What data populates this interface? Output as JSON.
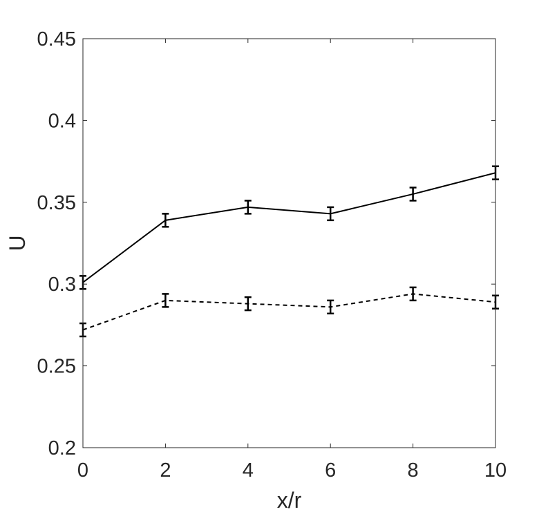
{
  "chart_data": {
    "type": "line",
    "xlabel": "x/r",
    "ylabel": "U",
    "xlim": [
      0,
      10
    ],
    "ylim": [
      0.2,
      0.45
    ],
    "xticks": [
      0,
      2,
      4,
      6,
      8,
      10
    ],
    "xtick_labels": [
      "0",
      "2",
      "4",
      "6",
      "8",
      "10"
    ],
    "yticks": [
      0.2,
      0.25,
      0.3,
      0.35,
      0.4,
      0.45
    ],
    "ytick_labels": [
      "0.2",
      "0.25",
      "0.3",
      "0.35",
      "0.4",
      "0.45"
    ],
    "grid": false,
    "box": true,
    "x": [
      0,
      2,
      4,
      6,
      8,
      10
    ],
    "series": [
      {
        "style": "solid",
        "color": "#000000",
        "values": [
          0.301,
          0.339,
          0.347,
          0.343,
          0.355,
          0.368
        ],
        "errors": [
          0.004,
          0.004,
          0.004,
          0.004,
          0.004,
          0.004
        ]
      },
      {
        "style": "dashed",
        "color": "#000000",
        "values": [
          0.272,
          0.29,
          0.288,
          0.286,
          0.294,
          0.289
        ],
        "errors": [
          0.004,
          0.004,
          0.004,
          0.004,
          0.004,
          0.004
        ]
      }
    ]
  }
}
